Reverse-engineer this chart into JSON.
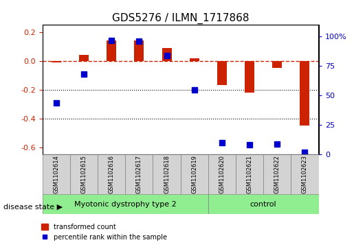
{
  "title": "GDS5276 / ILMN_1717868",
  "samples": [
    "GSM1102614",
    "GSM1102615",
    "GSM1102616",
    "GSM1102617",
    "GSM1102618",
    "GSM1102619",
    "GSM1102620",
    "GSM1102621",
    "GSM1102622",
    "GSM1102623"
  ],
  "red_values": [
    -0.01,
    0.04,
    0.14,
    0.14,
    0.09,
    0.02,
    -0.17,
    -0.22,
    -0.05,
    -0.45
  ],
  "blue_values_pct": [
    44,
    68,
    97,
    96,
    84,
    55,
    10,
    8,
    9,
    2
  ],
  "group1_label": "Myotonic dystrophy type 2",
  "group1_count": 6,
  "group2_label": "control",
  "group2_count": 4,
  "disease_state_label": "disease state",
  "legend_red": "transformed count",
  "legend_blue": "percentile rank within the sample",
  "ylim_left": [
    -0.65,
    0.25
  ],
  "ylim_right": [
    0,
    110
  ],
  "yticks_left": [
    -0.6,
    -0.4,
    -0.2,
    0.0,
    0.2
  ],
  "yticks_right": [
    0,
    25,
    50,
    75,
    100
  ],
  "red_color": "#cc2200",
  "blue_color": "#0000cc",
  "group_bg_color": "#90ee90",
  "sample_bg_color": "#d3d3d3",
  "bar_width": 0.35,
  "blue_marker_size": 6
}
